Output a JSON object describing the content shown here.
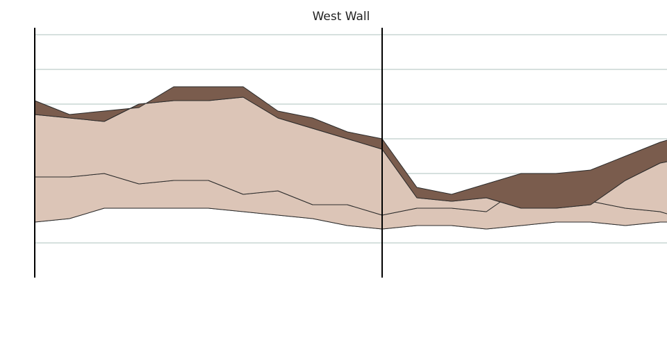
{
  "chart_data": {
    "type": "area",
    "title": "West Wall",
    "xlabel": "",
    "ylabel": "",
    "x": [
      0,
      1,
      2,
      3,
      4,
      5,
      6,
      7,
      8,
      9,
      10,
      11,
      12,
      13,
      14,
      15,
      16,
      17,
      18,
      19
    ],
    "xlim": [
      0,
      18.2
    ],
    "ylim": [
      0,
      100
    ],
    "divider_x": 10,
    "grid": true,
    "legend": "none",
    "series": [
      {
        "values": [
          36,
          37,
          40,
          40,
          40,
          40,
          39,
          38,
          37,
          35,
          34,
          35,
          35,
          34,
          35,
          36,
          36,
          35,
          36,
          36
        ],
        "color": "#dba197"
      },
      {
        "values": [
          49,
          49,
          50,
          47,
          48,
          48,
          44,
          45,
          41,
          41,
          38,
          40,
          40,
          39,
          46,
          45,
          42,
          40,
          39,
          36
        ],
        "color": "#dcc5b7"
      },
      {
        "values": [
          67,
          66,
          65,
          70,
          71,
          71,
          72,
          66,
          63,
          60,
          57,
          43,
          42,
          43,
          40,
          40,
          41,
          48,
          53,
          55
        ],
        "color": "#dcc5b7"
      },
      {
        "values": [
          71,
          67,
          68,
          69,
          75,
          75,
          75,
          68,
          66,
          62,
          60,
          46,
          44,
          47,
          50,
          50,
          51,
          55,
          59,
          62
        ],
        "color": "#7a5c4d"
      }
    ]
  }
}
